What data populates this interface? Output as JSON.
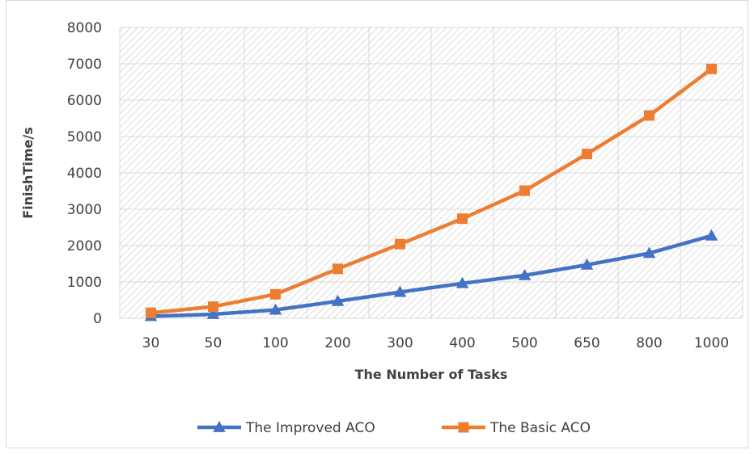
{
  "chart_data": {
    "type": "line",
    "title": "",
    "xlabel": "The Number of Tasks",
    "ylabel": "FinishTime/s",
    "categories": [
      "30",
      "50",
      "100",
      "200",
      "300",
      "400",
      "500",
      "650",
      "800",
      "1000"
    ],
    "ylim": [
      0,
      8000
    ],
    "yticks": [
      0,
      1000,
      2000,
      3000,
      4000,
      5000,
      6000,
      7000,
      8000
    ],
    "grid": true,
    "plot_background": "diagonal hatch",
    "legend": "bottom",
    "series": [
      {
        "name": "The Improved ACO",
        "color": "#4472c4",
        "marker": "triangle",
        "values": [
          55,
          110,
          230,
          470,
          720,
          960,
          1180,
          1470,
          1790,
          2270
        ]
      },
      {
        "name": "The Basic ACO",
        "color": "#ed7d31",
        "marker": "square",
        "values": [
          150,
          320,
          660,
          1360,
          2040,
          2740,
          3510,
          4520,
          5580,
          6860
        ]
      }
    ]
  }
}
